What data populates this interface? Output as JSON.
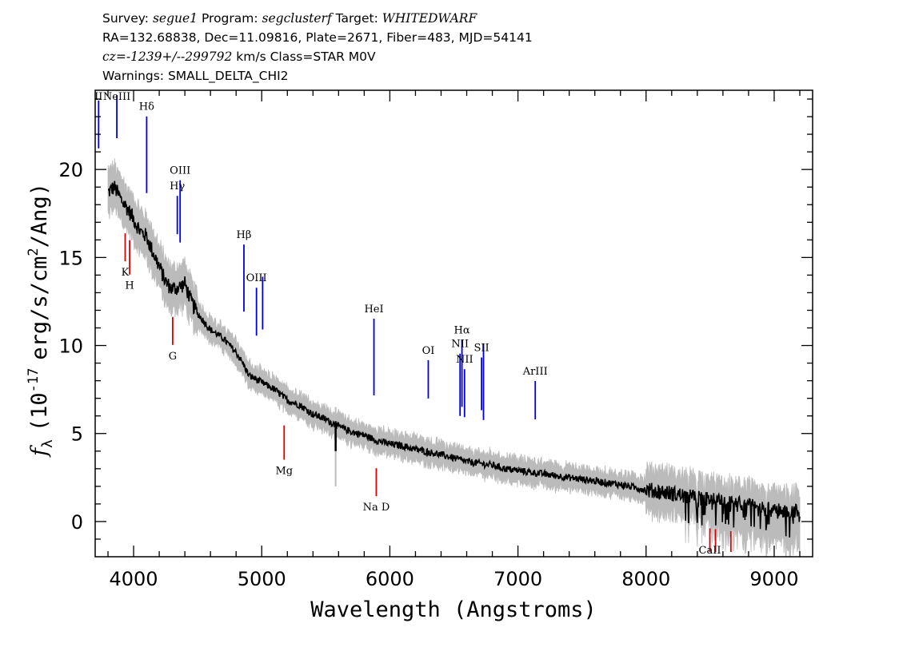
{
  "header": {
    "survey_key": "Survey:",
    "survey": "segue1",
    "program_key": "Program:",
    "program": "segclusterf",
    "target_key": "Target:",
    "target": "WHITEDWARF",
    "line2": "RA=132.68838, Dec=11.09816, Plate=2671, Fiber=483, MJD=54141",
    "cz": "cz=-1239+/--299792",
    "cz_rest": " km/s Class=STAR M0V",
    "warnings": "Warnings: SMALL_DELTA_CHI2"
  },
  "chart_data": {
    "type": "line",
    "xlabel": "Wavelength (Angstroms)",
    "ylabel_parts": {
      "f": "f",
      "sub": "λ",
      "pre": "(10",
      "exp1": "-17",
      "mid": "erg/s/cm",
      "exp2": "2",
      "post": "/Ang)"
    },
    "xlim": [
      3700,
      9300
    ],
    "ylim": [
      -2,
      24.5
    ],
    "xticks": [
      4000,
      5000,
      6000,
      7000,
      8000,
      9000
    ],
    "yticks": [
      0,
      5,
      10,
      15,
      20
    ],
    "colors": {
      "flux": "#000000",
      "error": "#bbbbbb",
      "emission": "#0000dd",
      "absorption": "#dd0000"
    },
    "series": [
      {
        "role": "flux",
        "x": [
          3800,
          3850,
          3900,
          3950,
          4000,
          4050,
          4100,
          4150,
          4200,
          4250,
          4300,
          4350,
          4400,
          4450,
          4500,
          4600,
          4700,
          4800,
          4860,
          4900,
          5000,
          5100,
          5200,
          5300,
          5400,
          5500,
          5600,
          5700,
          5800,
          5900,
          6000,
          6100,
          6200,
          6300,
          6400,
          6500,
          6600,
          6700,
          6800,
          6900,
          7000,
          7200,
          7400,
          7600,
          7800,
          8000,
          8200,
          8400,
          8600,
          8800,
          9000,
          9200
        ],
        "y": [
          18.7,
          19.0,
          18.3,
          17.8,
          17.2,
          16.5,
          16.2,
          15.3,
          14.5,
          13.6,
          13.2,
          13.3,
          13.5,
          12.5,
          11.8,
          10.9,
          10.4,
          9.6,
          8.9,
          8.3,
          7.9,
          7.5,
          6.9,
          6.6,
          6.1,
          5.8,
          5.4,
          5.1,
          4.9,
          4.6,
          4.4,
          4.3,
          4.1,
          3.95,
          3.8,
          3.6,
          3.4,
          3.3,
          3.2,
          3.0,
          2.9,
          2.7,
          2.5,
          2.3,
          2.1,
          1.8,
          1.6,
          1.3,
          1.1,
          0.9,
          0.6,
          0.6
        ]
      }
    ],
    "emission_lines": [
      {
        "label": "II",
        "x": 3727
      },
      {
        "label": "NeIII",
        "x": 3869
      },
      {
        "label": "Hδ",
        "x": 4102
      },
      {
        "label": "Hγ",
        "x": 4341
      },
      {
        "label": "OIII",
        "x": 4363
      },
      {
        "label": "Hβ",
        "x": 4861
      },
      {
        "label": "OIII",
        "x": 4959
      },
      {
        "label": "",
        "x": 5007
      },
      {
        "label": "HeI",
        "x": 5876
      },
      {
        "label": "OI",
        "x": 6300
      },
      {
        "label": "NII",
        "x": 6548
      },
      {
        "label": "Hα",
        "x": 6563
      },
      {
        "label": "NII",
        "x": 6583
      },
      {
        "label": "SII",
        "x": 6716
      },
      {
        "label": "",
        "x": 6731
      },
      {
        "label": "ArIII",
        "x": 7135
      }
    ],
    "absorption_lines": [
      {
        "label": "K",
        "x": 3934
      },
      {
        "label": "H",
        "x": 3969
      },
      {
        "label": "G",
        "x": 4305
      },
      {
        "label": "Mg",
        "x": 5175
      },
      {
        "label": "Na D",
        "x": 5894
      },
      {
        "label": "CaII",
        "x": 8498
      },
      {
        "label": "",
        "x": 8542
      },
      {
        "label": "",
        "x": 8662
      }
    ]
  }
}
